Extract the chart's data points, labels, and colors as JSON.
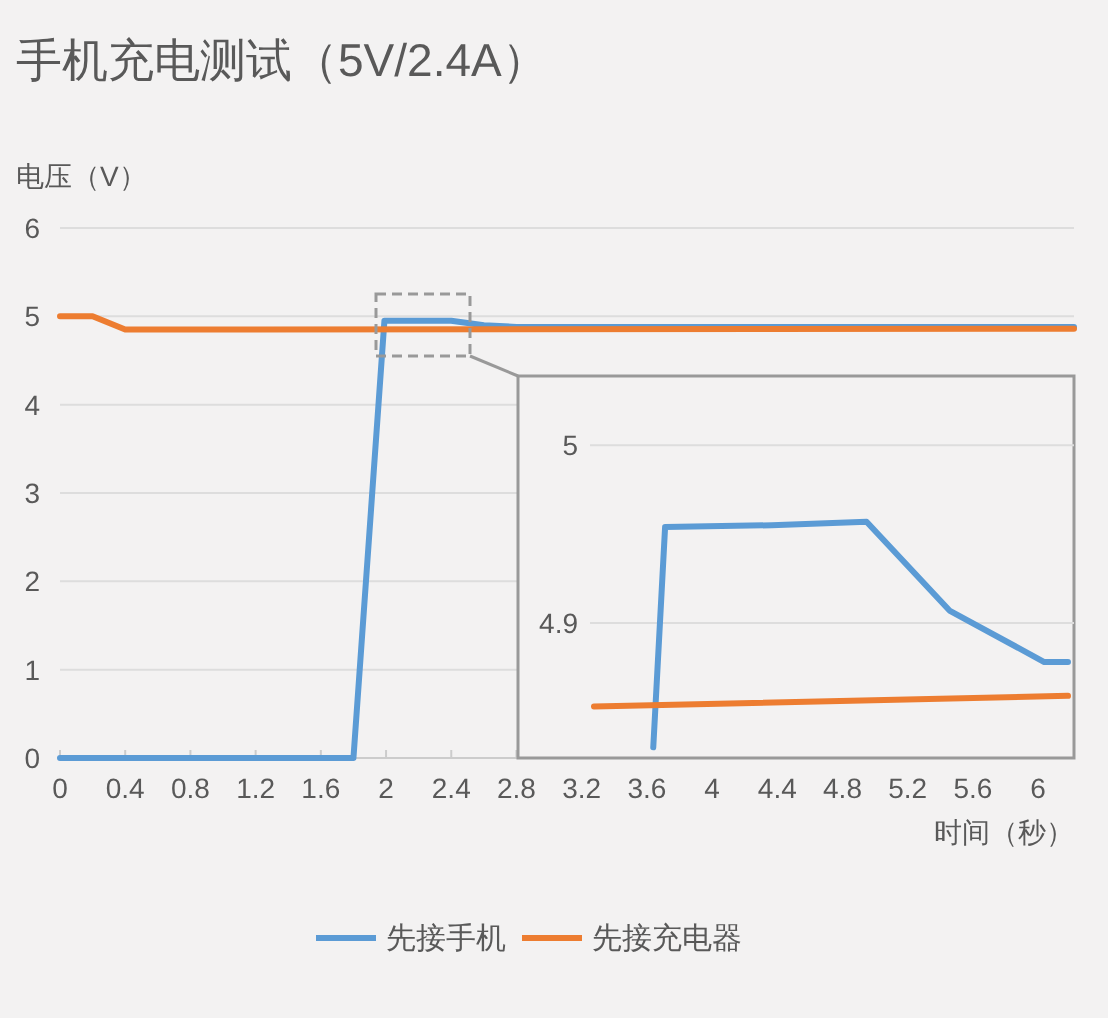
{
  "chart_data": [
    {
      "type": "line",
      "title": "手机充电测试（5V/2.4A）",
      "ylabel": "电压（V）",
      "xlabel": "时间（秒）",
      "xlim": [
        0,
        6.22
      ],
      "ylim": [
        0,
        6
      ],
      "xticks": [
        0,
        0.4,
        0.8,
        1.2,
        1.6,
        2,
        2.4,
        2.8,
        3.2,
        3.6,
        4,
        4.4,
        4.8,
        5.2,
        5.6,
        6
      ],
      "yticks": [
        0,
        1,
        2,
        3,
        4,
        5,
        6
      ],
      "grid": "y",
      "legend": "bottom",
      "series": [
        {
          "name": "先接手机",
          "color": "#5b9bd5",
          "x": [
            0,
            1.8,
            1.99,
            2.4,
            2.6,
            2.8,
            6.22
          ],
          "values": [
            0,
            0,
            4.95,
            4.95,
            4.9,
            4.88,
            4.88
          ]
        },
        {
          "name": "先接充电器",
          "color": "#ed7d31",
          "x": [
            0,
            0.2,
            0.4,
            6.22
          ],
          "values": [
            5.0,
            5.0,
            4.85,
            4.86
          ]
        }
      ]
    },
    {
      "type": "line",
      "categories": [
        null,
        null,
        null,
        null,
        null,
        null,
        null,
        null,
        null,
        null,
        null,
        null,
        null,
        null,
        null,
        null,
        null,
        null,
        null,
        null,
        null,
        null,
        null,
        null,
        null,
        null,
        null,
        null,
        null,
        null,
        null,
        null,
        null,
        null,
        null,
        null,
        null,
        null,
        null,
        null,
        null
      ],
      "ylim": [
        4.824,
        5.039
      ],
      "yticks": [
        4.9,
        5
      ],
      "grid": "y",
      "series": [
        {
          "color": "#5b9bd5",
          "values": [
            null,
            null,
            null,
            null,
            null,
            4.83,
            4.954,
            null,
            null,
            null,
            null,
            null,
            null,
            null,
            null,
            4.955,
            null,
            null,
            null,
            null,
            null,
            null,
            null,
            4.957,
            null,
            null,
            null,
            null,
            null,
            null,
            4.907,
            null,
            null,
            null,
            null,
            null,
            null,
            null,
            4.878,
            null,
            4.878
          ]
        },
        {
          "color": "#ed7d31",
          "values": [
            4.853,
            null,
            null,
            null,
            null,
            null,
            null,
            null,
            null,
            null,
            null,
            null,
            null,
            null,
            null,
            null,
            null,
            null,
            null,
            null,
            null,
            null,
            null,
            null,
            null,
            null,
            null,
            null,
            null,
            null,
            null,
            null,
            null,
            null,
            null,
            null,
            null,
            null,
            null,
            null,
            4.859
          ]
        }
      ]
    }
  ]
}
